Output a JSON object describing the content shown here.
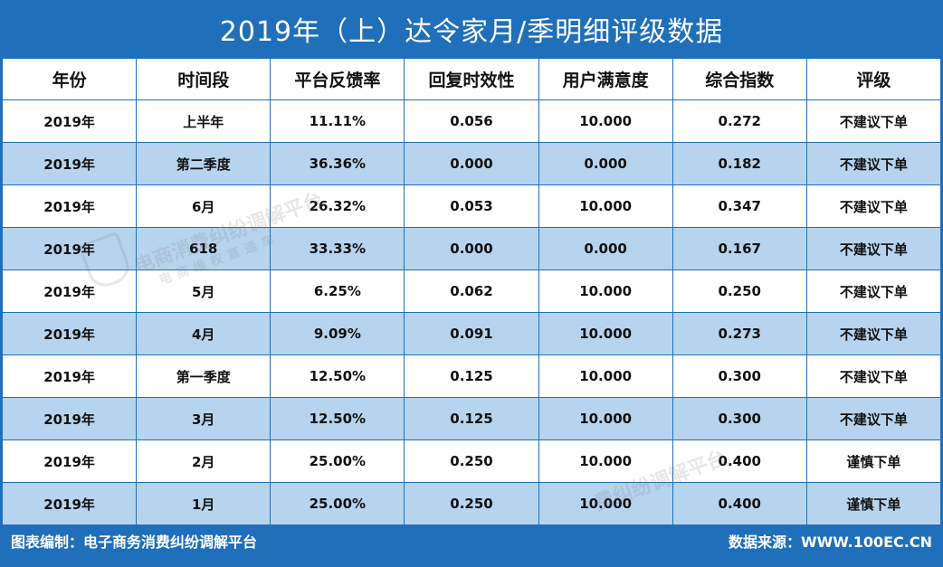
{
  "title": "2019年（上）达令家月/季明细评级数据",
  "headers": [
    "年份",
    "时间段",
    "平台反馈率",
    "回复时效性",
    "用户满意度",
    "综合指数",
    "评级"
  ],
  "rows": [
    [
      "2019年",
      "上半年",
      "11.11%",
      "0.056",
      "10.000",
      "0.272",
      "不建议下单"
    ],
    [
      "2019年",
      "第二季度",
      "36.36%",
      "0.000",
      "0.000",
      "0.182",
      "不建议下单"
    ],
    [
      "2019年",
      "6月",
      "26.32%",
      "0.053",
      "10.000",
      "0.347",
      "不建议下单"
    ],
    [
      "2019年",
      "618",
      "33.33%",
      "0.000",
      "0.000",
      "0.167",
      "不建议下单"
    ],
    [
      "2019年",
      "5月",
      "6.25%",
      "0.062",
      "10.000",
      "0.250",
      "不建议下单"
    ],
    [
      "2019年",
      "4月",
      "9.09%",
      "0.091",
      "10.000",
      "0.273",
      "不建议下单"
    ],
    [
      "2019年",
      "第一季度",
      "12.50%",
      "0.125",
      "10.000",
      "0.300",
      "不建议下单"
    ],
    [
      "2019年",
      "3月",
      "12.50%",
      "0.125",
      "10.000",
      "0.300",
      "不建议下单"
    ],
    [
      "2019年",
      "2月",
      "25.00%",
      "0.250",
      "10.000",
      "0.400",
      "谨慎下单"
    ],
    [
      "2019年",
      "1月",
      "25.00%",
      "0.250",
      "10.000",
      "0.400",
      "谨慎下单"
    ]
  ],
  "watermark": {
    "line1": "电商消费纠纷调解平台",
    "line2": "电商维权直通车",
    "line3": "费纠纷调解平台"
  },
  "footer": {
    "left": "图表编制：电子商务消费纠纷调解平台",
    "right": "数据来源：WWW.100EC.CN"
  },
  "colors": {
    "brand_blue": "#1f6fba",
    "row_alt": "#b7d4ee",
    "row_normal": "#ffffff"
  }
}
